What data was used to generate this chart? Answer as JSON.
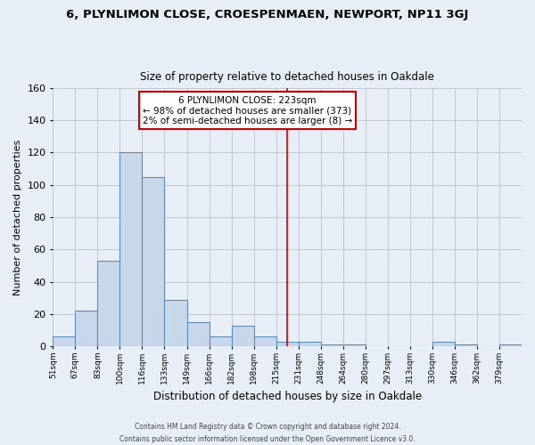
{
  "title": "6, PLYNLIMON CLOSE, CROESPENMAEN, NEWPORT, NP11 3GJ",
  "subtitle": "Size of property relative to detached houses in Oakdale",
  "xlabel": "Distribution of detached houses by size in Oakdale",
  "ylabel": "Number of detached properties",
  "bin_labels": [
    "51sqm",
    "67sqm",
    "83sqm",
    "100sqm",
    "116sqm",
    "133sqm",
    "149sqm",
    "166sqm",
    "182sqm",
    "198sqm",
    "215sqm",
    "231sqm",
    "248sqm",
    "264sqm",
    "280sqm",
    "297sqm",
    "313sqm",
    "330sqm",
    "346sqm",
    "362sqm",
    "379sqm"
  ],
  "bar_heights": [
    6,
    22,
    53,
    120,
    105,
    29,
    15,
    6,
    13,
    6,
    3,
    3,
    1,
    1,
    0,
    0,
    0,
    3,
    1,
    0,
    1
  ],
  "bar_color": "#c8d8ea",
  "bar_edgecolor": "#5b8db8",
  "property_line_color": "#cc0000",
  "ylim": [
    0,
    160
  ],
  "yticks": [
    0,
    20,
    40,
    60,
    80,
    100,
    120,
    140,
    160
  ],
  "annotation_title": "6 PLYNLIMON CLOSE: 223sqm",
  "annotation_line1": "← 98% of detached houses are smaller (373)",
  "annotation_line2": "2% of semi-detached houses are larger (8) →",
  "footer_line1": "Contains HM Land Registry data © Crown copyright and database right 2024.",
  "footer_line2": "Contains public sector information licensed under the Open Government Licence v3.0.",
  "background_color": "#e8eef5",
  "plot_background_color": "#e8eef5",
  "grid_color": "#c0c8d0"
}
